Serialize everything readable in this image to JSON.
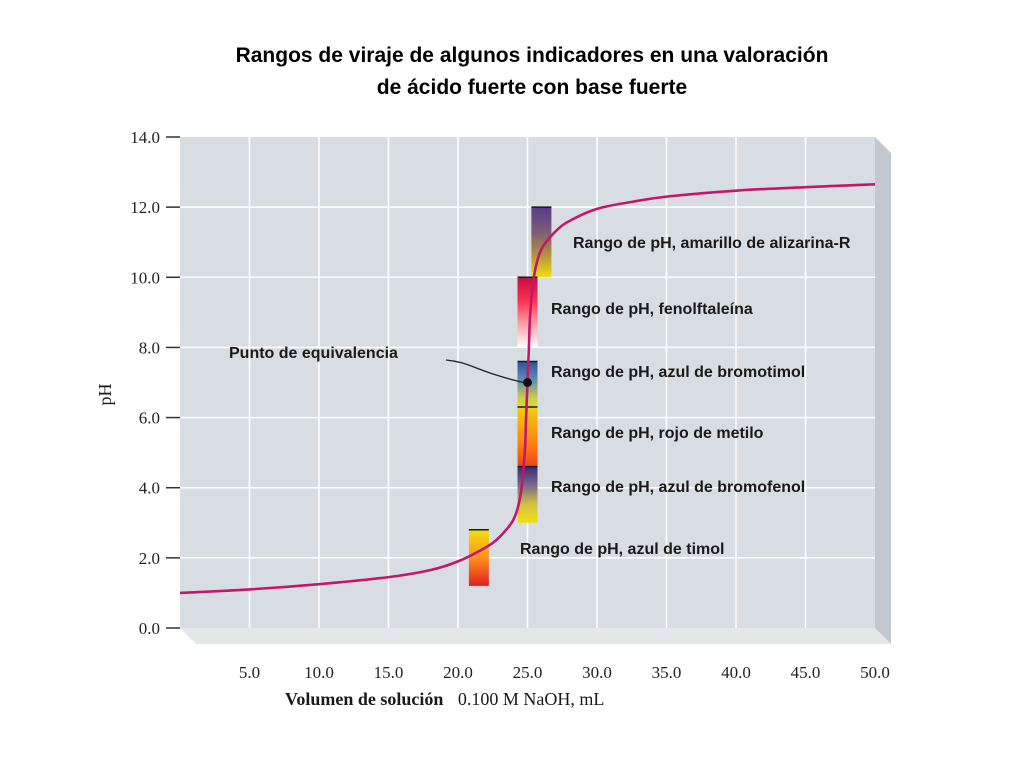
{
  "chart_data": {
    "type": "line",
    "title_lines": [
      "Rangos de viraje de algunos indicadores en una valoración",
      "de ácido fuerte con base fuerte"
    ],
    "xlabel_bold": "Volumen de solución",
    "xlabel_rest": "0.100 M NaOH, mL",
    "ylabel": "pH",
    "xlim": [
      0,
      50
    ],
    "ylim": [
      0,
      14
    ],
    "x_ticks": [
      {
        "value": 5,
        "label": "5.0"
      },
      {
        "value": 10,
        "label": "10.0"
      },
      {
        "value": 15,
        "label": "15.0"
      },
      {
        "value": 20,
        "label": "20.0"
      },
      {
        "value": 25,
        "label": "25.0"
      },
      {
        "value": 30,
        "label": "30.0"
      },
      {
        "value": 35,
        "label": "35.0"
      },
      {
        "value": 40,
        "label": "40.0"
      },
      {
        "value": 45,
        "label": "45.0"
      },
      {
        "value": 50,
        "label": "50.0"
      }
    ],
    "y_ticks": [
      {
        "value": 0,
        "label": "0.0"
      },
      {
        "value": 2,
        "label": "2.0"
      },
      {
        "value": 4,
        "label": "4.0"
      },
      {
        "value": 6,
        "label": "6.0"
      },
      {
        "value": 8,
        "label": "8.0"
      },
      {
        "value": 10,
        "label": "10.0"
      },
      {
        "value": 12,
        "label": "12.0"
      },
      {
        "value": 14,
        "label": "14.0"
      }
    ],
    "grid": true,
    "series": [
      {
        "color": "#c2186b",
        "points": [
          [
            0,
            1.0
          ],
          [
            5,
            1.1
          ],
          [
            10,
            1.25
          ],
          [
            15,
            1.45
          ],
          [
            18,
            1.65
          ],
          [
            20,
            1.9
          ],
          [
            22,
            2.3
          ],
          [
            23,
            2.6
          ],
          [
            24,
            3.1
          ],
          [
            24.5,
            3.8
          ],
          [
            24.8,
            5.0
          ],
          [
            24.9,
            6.0
          ],
          [
            25.0,
            7.0
          ],
          [
            25.1,
            8.0
          ],
          [
            25.2,
            9.0
          ],
          [
            25.5,
            10.1
          ],
          [
            26.0,
            10.8
          ],
          [
            27.0,
            11.3
          ],
          [
            28.0,
            11.6
          ],
          [
            30.0,
            11.95
          ],
          [
            32.5,
            12.15
          ],
          [
            35.0,
            12.3
          ],
          [
            40.0,
            12.47
          ],
          [
            45.0,
            12.57
          ],
          [
            50.0,
            12.65
          ]
        ]
      }
    ],
    "equivalence_point": {
      "x": 25.0,
      "y": 7.0,
      "label": "Punto de equivalencia"
    },
    "indicator_ranges": [
      {
        "label": "Rango de pH, amarillo de alizarina-R",
        "x": 26.0,
        "ph_low": 10.0,
        "ph_high": 12.0,
        "colors_top_to_bottom": [
          "#5a3a8a",
          "#7a5a7a",
          "#b09040",
          "#f0e010"
        ]
      },
      {
        "label": "Rango de pH, fenolftaleína",
        "x": 25.0,
        "ph_low": 8.0,
        "ph_high": 10.0,
        "colors_top_to_bottom": [
          "#c01040",
          "#ff3050",
          "#ffa0a8",
          "#ffffff"
        ]
      },
      {
        "label": "Rango de pH, azul de bromotimol",
        "x": 25.0,
        "ph_low": 6.0,
        "ph_high": 7.6,
        "colors_top_to_bottom": [
          "#3050a0",
          "#6090b0",
          "#d0d040",
          "#f0e020"
        ]
      },
      {
        "label": "Rango de pH, rojo de metilo",
        "x": 25.0,
        "ph_low": 4.2,
        "ph_high": 6.3,
        "colors_top_to_bottom": [
          "#f0d010",
          "#ff8010",
          "#e02020"
        ]
      },
      {
        "label": "Rango de pH, azul de bromofenol",
        "x": 25.0,
        "ph_low": 3.0,
        "ph_high": 4.6,
        "colors_top_to_bottom": [
          "#3a2a7a",
          "#7a6a8a",
          "#d0c040",
          "#f0e010"
        ]
      },
      {
        "label": "Rango de pH, azul de timol",
        "x": 21.5,
        "ph_low": 1.2,
        "ph_high": 2.8,
        "colors_top_to_bottom": [
          "#f0e010",
          "#ff9020",
          "#e02020"
        ]
      }
    ],
    "colors": {
      "plot_background": "#d8dde3",
      "grid": "#ffffff",
      "frame_side": "#c8cdd3",
      "curve": "#c2186b"
    }
  }
}
